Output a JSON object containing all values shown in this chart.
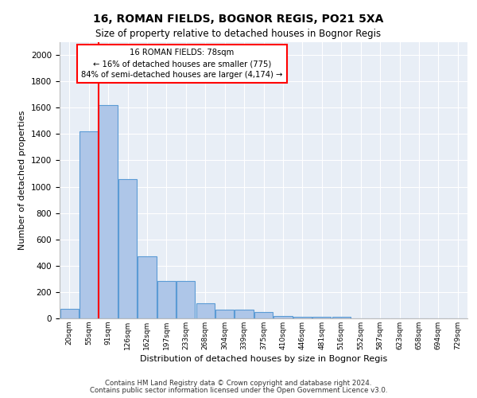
{
  "title1": "16, ROMAN FIELDS, BOGNOR REGIS, PO21 5XA",
  "title2": "Size of property relative to detached houses in Bognor Regis",
  "xlabel": "Distribution of detached houses by size in Bognor Regis",
  "ylabel": "Number of detached properties",
  "bar_labels": [
    "20sqm",
    "55sqm",
    "91sqm",
    "126sqm",
    "162sqm",
    "197sqm",
    "233sqm",
    "268sqm",
    "304sqm",
    "339sqm",
    "375sqm",
    "410sqm",
    "446sqm",
    "481sqm",
    "516sqm",
    "552sqm",
    "587sqm",
    "623sqm",
    "658sqm",
    "694sqm",
    "729sqm"
  ],
  "bar_values": [
    75,
    1420,
    1620,
    1060,
    470,
    285,
    285,
    115,
    65,
    65,
    50,
    20,
    15,
    10,
    10,
    0,
    0,
    0,
    0,
    0,
    0
  ],
  "bar_color": "#aec6e8",
  "bar_edge_color": "#5b9bd5",
  "vline_x": 1.5,
  "vline_color": "red",
  "annotation_text": "16 ROMAN FIELDS: 78sqm\n← 16% of detached houses are smaller (775)\n84% of semi-detached houses are larger (4,174) →",
  "annotation_box_color": "white",
  "annotation_box_edge": "red",
  "ylim": [
    0,
    2100
  ],
  "yticks": [
    0,
    200,
    400,
    600,
    800,
    1000,
    1200,
    1400,
    1600,
    1800,
    2000
  ],
  "background_color": "#e8eef6",
  "footer1": "Contains HM Land Registry data © Crown copyright and database right 2024.",
  "footer2": "Contains public sector information licensed under the Open Government Licence v3.0."
}
